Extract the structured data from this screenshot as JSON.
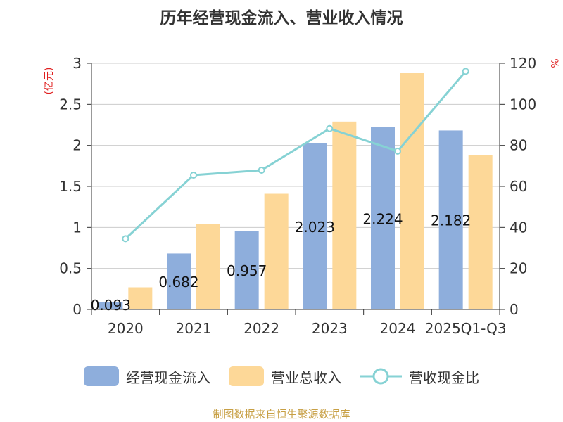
{
  "chart_data": {
    "type": "bar",
    "title": "历年经营现金流入、营业收入情况",
    "categories": [
      "2020",
      "2021",
      "2022",
      "2023",
      "2024",
      "2025Q1-Q3"
    ],
    "series": [
      {
        "name": "经营现金流入",
        "kind": "bar",
        "axis": "left",
        "color": "#8eaedc",
        "values": [
          0.093,
          0.682,
          0.957,
          2.023,
          2.224,
          2.182
        ],
        "labels": [
          "0.093",
          "0.682",
          "0.957",
          "2.023",
          "2.224",
          "2.182"
        ]
      },
      {
        "name": "营业总收入",
        "kind": "bar",
        "axis": "left",
        "color": "#fdd898",
        "values": [
          0.27,
          1.04,
          1.41,
          2.29,
          2.88,
          1.88
        ]
      },
      {
        "name": "营收现金比",
        "kind": "line",
        "axis": "right",
        "color": "#86d2d4",
        "values": [
          34.5,
          65.5,
          67.9,
          88.2,
          77.2,
          116.1
        ]
      }
    ],
    "y_left": {
      "label": "(亿元)",
      "min": 0,
      "max": 3,
      "ticks": [
        "0",
        "0.5",
        "1",
        "1.5",
        "2",
        "2.5",
        "3"
      ],
      "tick_values": [
        0,
        0.5,
        1,
        1.5,
        2,
        2.5,
        3
      ]
    },
    "y_right": {
      "label": "%",
      "min": 0,
      "max": 120,
      "ticks": [
        "0",
        "20",
        "40",
        "60",
        "80",
        "100",
        "120"
      ],
      "tick_values": [
        0,
        20,
        40,
        60,
        80,
        100,
        120
      ]
    },
    "grid": true,
    "legend_position": "bottom"
  },
  "source": "制图数据来自恒生聚源数据库",
  "colors": {
    "left_axis_label": "#e02020",
    "right_axis_label": "#e02020",
    "axis": "#333333",
    "grid": "#cccccc",
    "source": "#c8a045"
  }
}
